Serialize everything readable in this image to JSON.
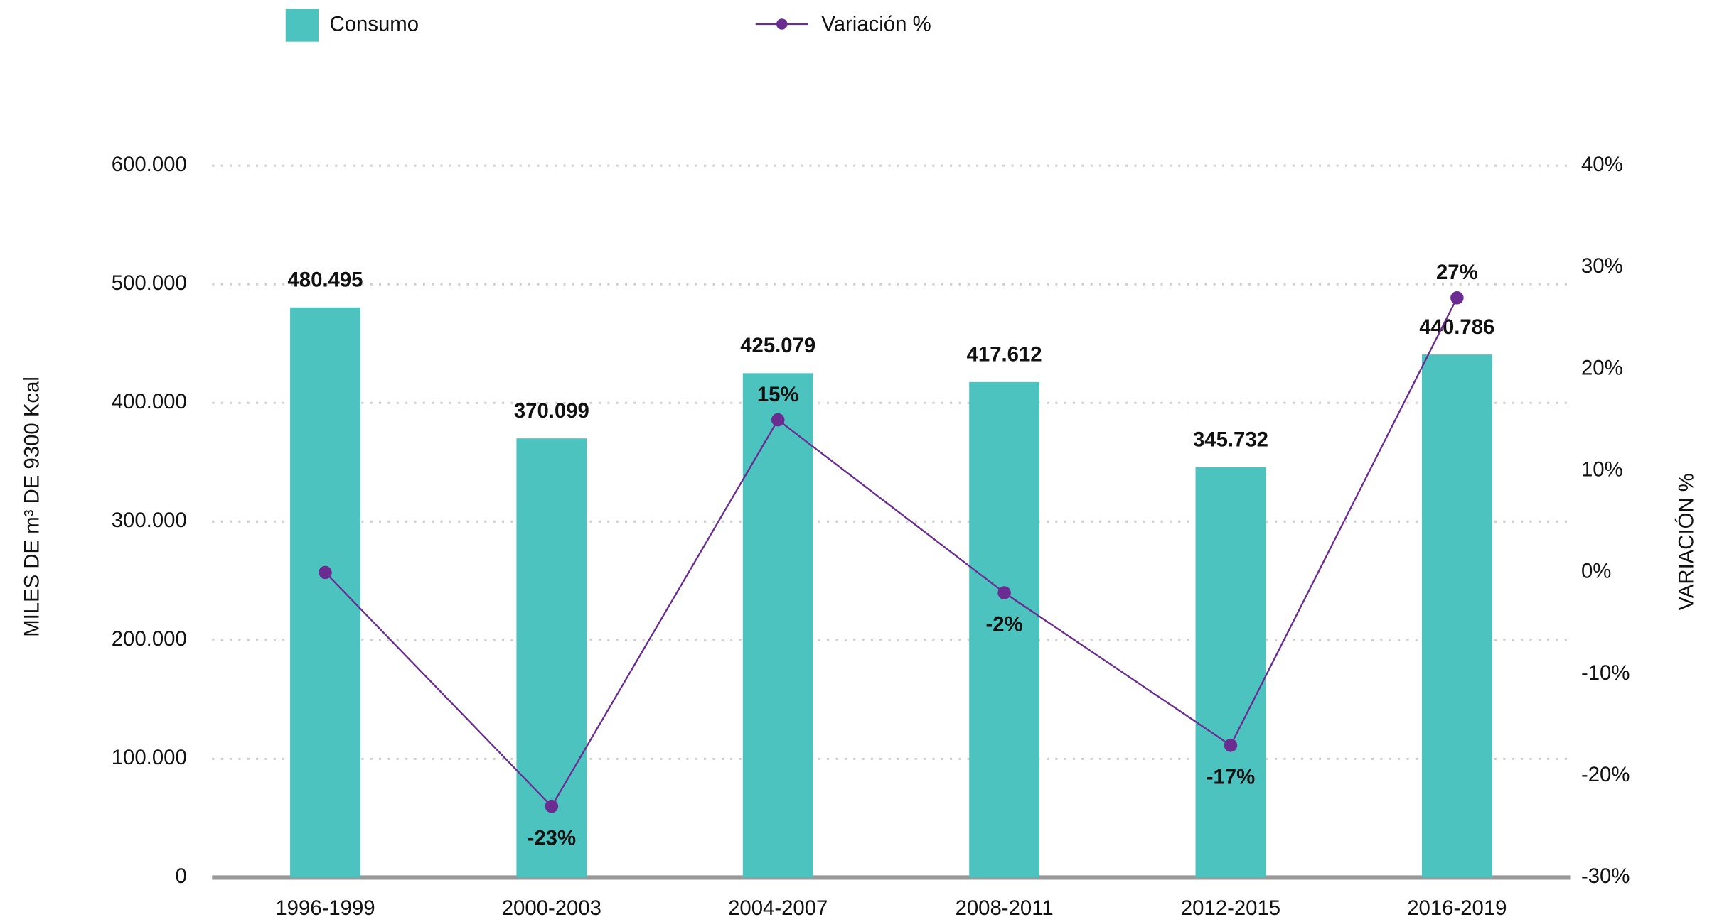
{
  "chart_data": {
    "type": "bar",
    "y_label": "MILES DE m³ DE 9300 Kcal",
    "y2_label": "VARIACIÓN %",
    "categories": [
      "1996-1999",
      "2000-2003",
      "2004-2007",
      "2008-2011",
      "2012-2015",
      "2016-2019"
    ],
    "series": [
      {
        "name": "Consumo",
        "type": "bar",
        "color": "#4dc3bf",
        "values": [
          480495,
          370099,
          425079,
          417612,
          345732,
          440786
        ],
        "value_labels": [
          "480.495",
          "370.099",
          "425.079",
          "417.612",
          "345.732",
          "440.786"
        ]
      },
      {
        "name": "Variación %",
        "type": "line",
        "axis": "y2",
        "color": "#6a2c91",
        "values": [
          0,
          -23,
          15,
          -2,
          -17,
          27
        ],
        "value_labels": [
          null,
          "-23%",
          "15%",
          "-2%",
          "-17%",
          "27%"
        ]
      }
    ],
    "ylim": [
      0,
      600000
    ],
    "yticks": [
      0,
      {
        "value": 100000,
        "label": "100.000"
      },
      {
        "value": 200000,
        "label": "200.000"
      },
      {
        "value": 300000,
        "label": "300.000"
      },
      {
        "value": 400000,
        "label": "400.000"
      },
      {
        "value": 500000,
        "label": "500.000"
      },
      {
        "value": 600000,
        "label": "600.000"
      }
    ],
    "y2lim": [
      -30,
      40
    ],
    "y2ticks": [
      {
        "value": -30,
        "label": "-30%"
      },
      {
        "value": -20,
        "label": "-20%"
      },
      {
        "value": -10,
        "label": "-10%"
      },
      {
        "value": 0,
        "label": "0%"
      },
      {
        "value": 10,
        "label": "10%"
      },
      {
        "value": 20,
        "label": "20%"
      },
      {
        "value": 30,
        "label": "30%"
      },
      {
        "value": 40,
        "label": "40%"
      }
    ],
    "grid": true,
    "legend": "top"
  }
}
